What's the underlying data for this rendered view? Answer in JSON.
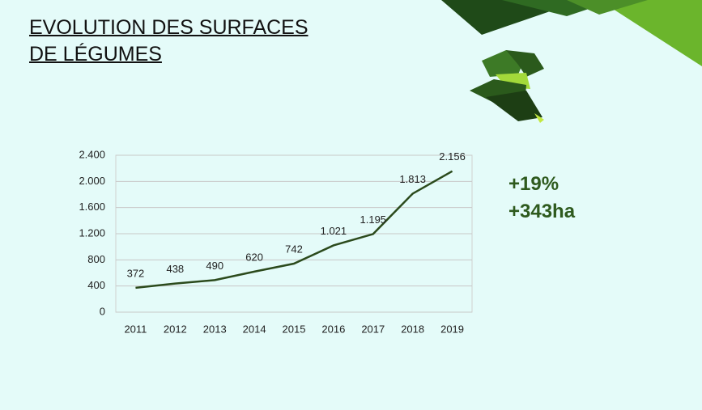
{
  "chart_data": {
    "type": "line",
    "title": "EVOLUTION DES SURFACES DE LÉGUMES",
    "categories": [
      "2011",
      "2012",
      "2013",
      "2014",
      "2015",
      "2016",
      "2017",
      "2018",
      "2019"
    ],
    "values": [
      372,
      438,
      490,
      620,
      742,
      1021,
      1195,
      1813,
      2156
    ],
    "value_labels": [
      "372",
      "438",
      "490",
      "620",
      "742",
      "1.021",
      "1.195",
      "1.813",
      "2.156"
    ],
    "color": "#2b4a1c",
    "ylim": [
      0,
      2400
    ],
    "yticks": [
      0,
      400,
      800,
      {
        "value": 1200,
        "label": "1.200"
      },
      {
        "value": 1600,
        "label": "1.600"
      },
      {
        "value": 2000,
        "label": "2.000"
      },
      {
        "value": 2400,
        "label": "2.400"
      }
    ],
    "grid": true,
    "annotations": [
      "+19%",
      "+343ha"
    ]
  }
}
